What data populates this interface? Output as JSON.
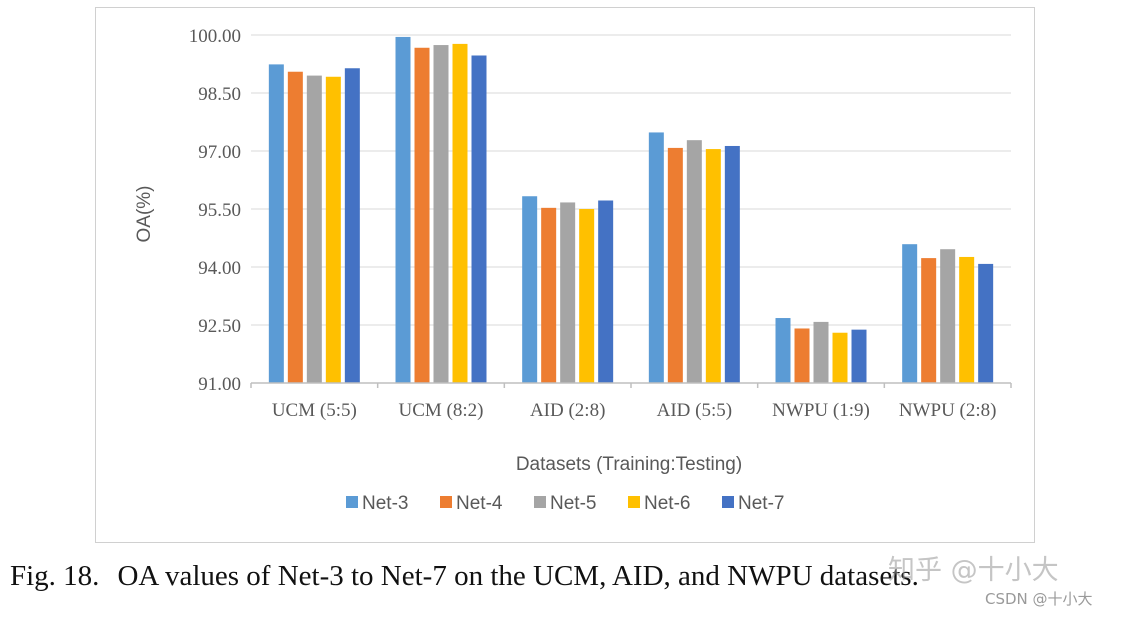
{
  "chart_data": {
    "type": "bar",
    "ylabel": "OA(%)",
    "xlabel": "Datasets (Training:Testing)",
    "ylim": [
      91.0,
      100.0
    ],
    "yticks": [
      "91.00",
      "92.50",
      "94.00",
      "95.50",
      "97.00",
      "98.50",
      "100.00"
    ],
    "grid": true,
    "legend_position": "bottom",
    "categories": [
      "UCM (5:5)",
      "UCM (8:2)",
      "AID (2:8)",
      "AID (5:5)",
      "NWPU (1:9)",
      "NWPU (2:8)"
    ],
    "series": [
      {
        "name": "Net-3",
        "color": "#5b9bd5",
        "values": [
          99.24,
          99.95,
          95.83,
          97.48,
          92.68,
          94.59
        ]
      },
      {
        "name": "Net-4",
        "color": "#ed7d31",
        "values": [
          99.05,
          99.67,
          95.53,
          97.08,
          92.41,
          94.23
        ]
      },
      {
        "name": "Net-5",
        "color": "#a5a5a5",
        "values": [
          98.95,
          99.74,
          95.67,
          97.28,
          92.58,
          94.46
        ]
      },
      {
        "name": "Net-6",
        "color": "#ffc000",
        "values": [
          98.92,
          99.77,
          95.5,
          97.05,
          92.3,
          94.26
        ]
      },
      {
        "name": "Net-7",
        "color": "#4472c4",
        "values": [
          99.14,
          99.47,
          95.72,
          97.13,
          92.38,
          94.08
        ]
      }
    ]
  },
  "caption": {
    "figure_label": "Fig. 18.",
    "text": "OA values of Net-3 to Net-7 on the UCM, AID, and NWPU datasets."
  },
  "watermark": {
    "main": "知乎 @十小大",
    "sub": "CSDN @十小大"
  }
}
